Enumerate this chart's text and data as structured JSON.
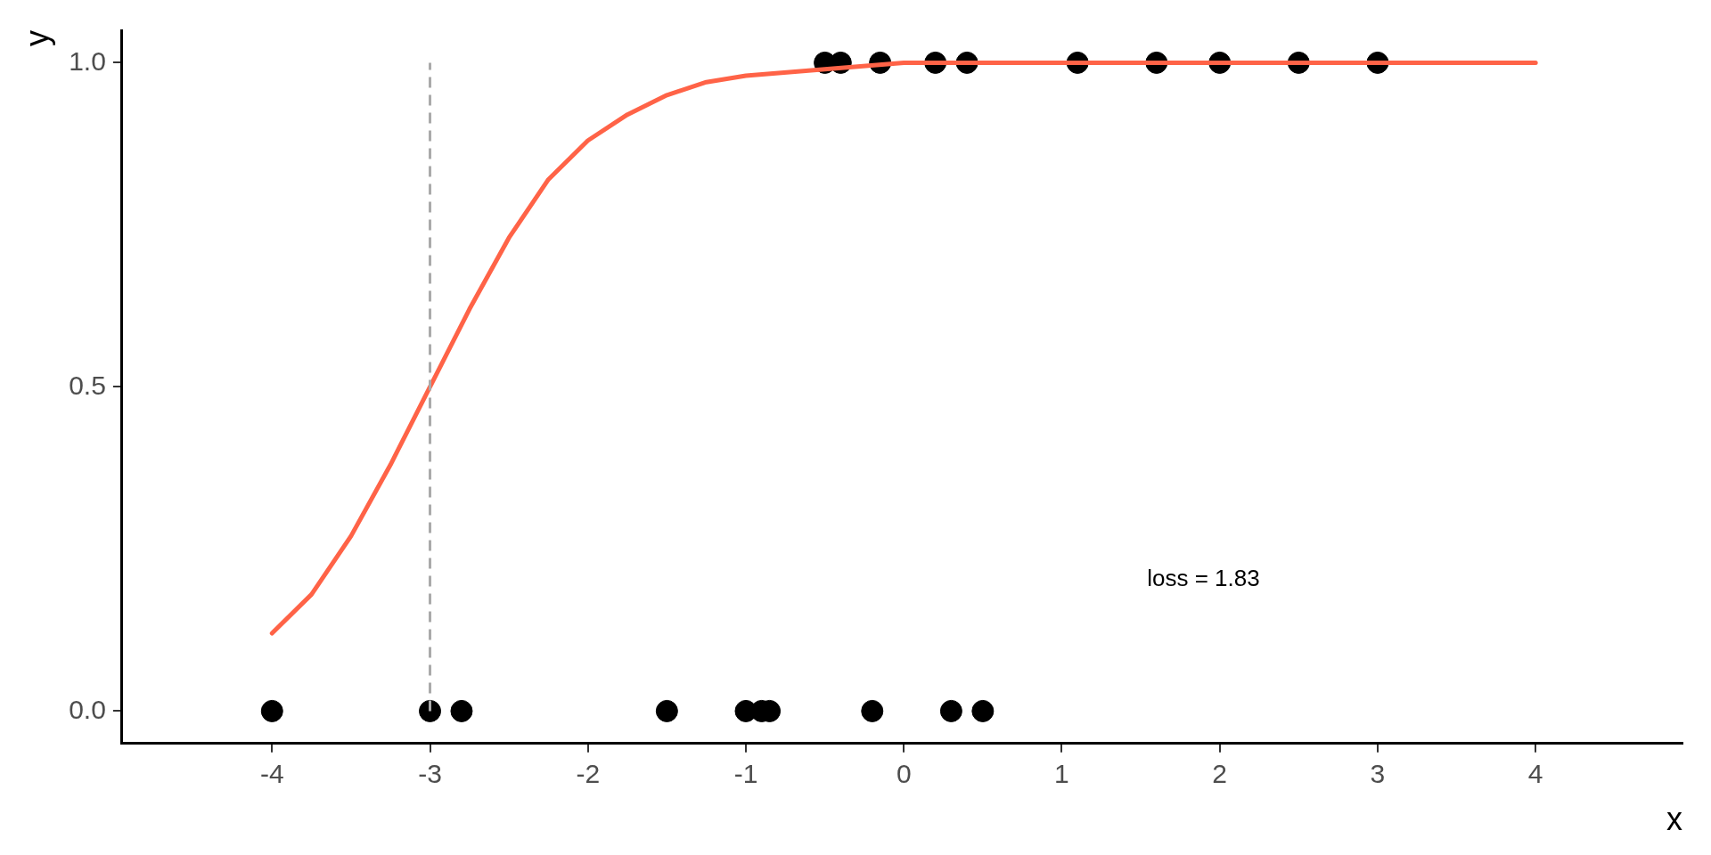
{
  "chart_data": {
    "type": "scatter",
    "xlabel": "x",
    "ylabel": "y",
    "xlim": [
      -4.95,
      4.93
    ],
    "ylim": [
      -0.05,
      1.05
    ],
    "xticks": [
      -4,
      -3,
      -2,
      -1,
      0,
      1,
      2,
      3,
      4
    ],
    "yticks": [
      {
        "value": 0,
        "label": "0.0"
      },
      {
        "value": 0.5,
        "label": "0.5"
      },
      {
        "value": 1,
        "label": "1.0"
      }
    ],
    "grid": false,
    "legend": false,
    "series": [
      {
        "type": "line",
        "color": "#ff6347",
        "marker": "none",
        "line_style": "solid",
        "x": [
          -4,
          -3.75,
          -3.5,
          -3.25,
          -3,
          -2.75,
          -2.5,
          -2.25,
          -2,
          -1.75,
          -1.5,
          -1.25,
          -1,
          -0.5,
          0,
          1,
          2,
          3,
          4
        ],
        "values": [
          0.12,
          0.18,
          0.27,
          0.38,
          0.5,
          0.62,
          0.73,
          0.82,
          0.88,
          0.92,
          0.95,
          0.97,
          0.98,
          0.99,
          1.0,
          1.0,
          1.0,
          1.0,
          1.0
        ]
      },
      {
        "color": "#000000",
        "marker": "circle",
        "x": [
          -4,
          -3,
          -2.8,
          -1.5,
          -1,
          -0.9,
          -0.85,
          -0.2,
          0.3,
          0.5,
          -0.5,
          -0.4,
          -0.15,
          0.2,
          0.4,
          1.1,
          1.6,
          2,
          2.5,
          3
        ],
        "values": [
          0,
          0,
          0,
          0,
          0,
          0,
          0,
          0,
          0,
          0,
          1,
          1,
          1,
          1,
          1,
          1,
          1,
          1,
          1,
          1
        ]
      }
    ],
    "ref_lines": [
      {
        "axis": "x",
        "value": -3,
        "color": "#aaaaaa",
        "line_style": "dashed"
      }
    ],
    "annotations": [
      "loss = 1.83"
    ]
  }
}
